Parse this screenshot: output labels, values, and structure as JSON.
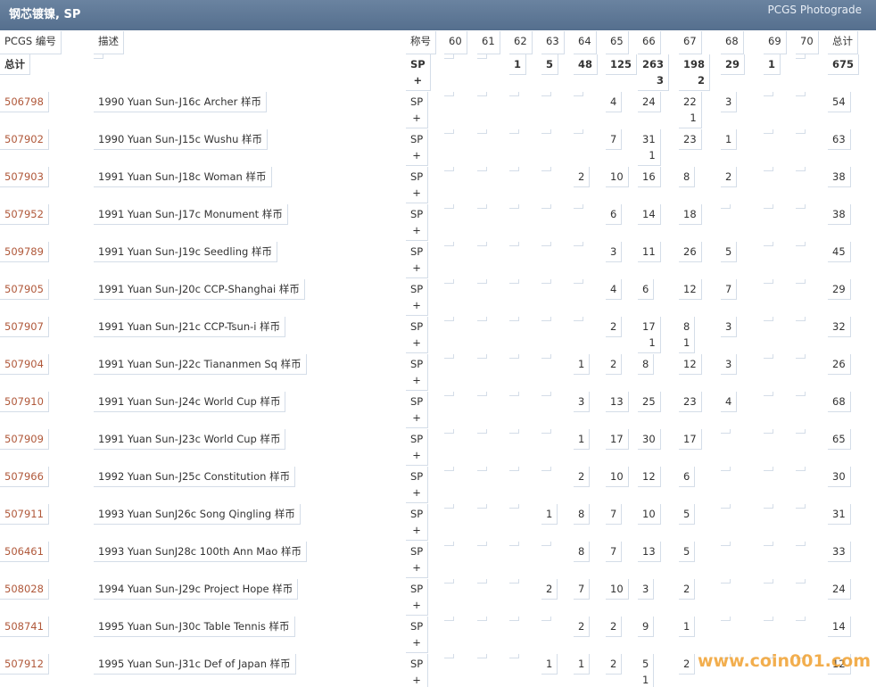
{
  "header": {
    "title": "钢芯镀镍, SP",
    "link": "PCGS Photograde"
  },
  "table": {
    "columns": [
      "PCGS 编号",
      "描述",
      "称号",
      "60",
      "61",
      "62",
      "63",
      "64",
      "65",
      "66",
      "67",
      "68",
      "69",
      "70",
      "总计"
    ],
    "total_row": {
      "label": "总计",
      "designation": [
        "SP",
        "+"
      ],
      "grades": [
        null,
        null,
        [
          1
        ],
        [
          5
        ],
        [
          48
        ],
        [
          125
        ],
        [
          263,
          3
        ],
        [
          198,
          2
        ],
        [
          29
        ],
        [
          1
        ],
        null
      ],
      "total": 675
    },
    "rows": [
      {
        "pcgs": "506798",
        "desc": "1990 Yuan Sun-J16c Archer 样币",
        "designation": [
          "SP",
          "+"
        ],
        "grades": [
          null,
          null,
          null,
          null,
          null,
          [
            4
          ],
          [
            24
          ],
          [
            22,
            1
          ],
          [
            3
          ],
          null,
          null
        ],
        "total": 54
      },
      {
        "pcgs": "507902",
        "desc": "1990 Yuan Sun-J15c Wushu 样币",
        "designation": [
          "SP",
          "+"
        ],
        "grades": [
          null,
          null,
          null,
          null,
          null,
          [
            7
          ],
          [
            31,
            1
          ],
          [
            23
          ],
          [
            1
          ],
          null,
          null
        ],
        "total": 63
      },
      {
        "pcgs": "507903",
        "desc": "1991 Yuan Sun-J18c Woman 样币",
        "designation": [
          "SP",
          "+"
        ],
        "grades": [
          null,
          null,
          null,
          null,
          [
            2
          ],
          [
            10
          ],
          [
            16
          ],
          [
            8
          ],
          [
            2
          ],
          null,
          null
        ],
        "total": 38
      },
      {
        "pcgs": "507952",
        "desc": "1991 Yuan Sun-J17c Monument 样币",
        "designation": [
          "SP",
          "+"
        ],
        "grades": [
          null,
          null,
          null,
          null,
          null,
          [
            6
          ],
          [
            14
          ],
          [
            18
          ],
          null,
          null,
          null
        ],
        "total": 38
      },
      {
        "pcgs": "509789",
        "desc": "1991 Yuan Sun-J19c Seedling 样币",
        "designation": [
          "SP",
          "+"
        ],
        "grades": [
          null,
          null,
          null,
          null,
          null,
          [
            3
          ],
          [
            11
          ],
          [
            26
          ],
          [
            5
          ],
          null,
          null
        ],
        "total": 45
      },
      {
        "pcgs": "507905",
        "desc": "1991 Yuan Sun-J20c CCP-Shanghai 样币",
        "designation": [
          "SP",
          "+"
        ],
        "grades": [
          null,
          null,
          null,
          null,
          null,
          [
            4
          ],
          [
            6
          ],
          [
            12
          ],
          [
            7
          ],
          null,
          null
        ],
        "total": 29
      },
      {
        "pcgs": "507907",
        "desc": "1991 Yuan Sun-J21c CCP-Tsun-i 样币",
        "designation": [
          "SP",
          "+"
        ],
        "grades": [
          null,
          null,
          null,
          null,
          null,
          [
            2
          ],
          [
            17,
            1
          ],
          [
            8,
            1
          ],
          [
            3
          ],
          null,
          null
        ],
        "total": 32
      },
      {
        "pcgs": "507904",
        "desc": "1991 Yuan Sun-J22c Tiananmen Sq 样币",
        "designation": [
          "SP",
          "+"
        ],
        "grades": [
          null,
          null,
          null,
          null,
          [
            1
          ],
          [
            2
          ],
          [
            8
          ],
          [
            12
          ],
          [
            3
          ],
          null,
          null
        ],
        "total": 26
      },
      {
        "pcgs": "507910",
        "desc": "1991 Yuan Sun-J24c World Cup 样币",
        "designation": [
          "SP",
          "+"
        ],
        "grades": [
          null,
          null,
          null,
          null,
          [
            3
          ],
          [
            13
          ],
          [
            25
          ],
          [
            23
          ],
          [
            4
          ],
          null,
          null
        ],
        "total": 68
      },
      {
        "pcgs": "507909",
        "desc": "1991 Yuan Sun-J23c World Cup 样币",
        "designation": [
          "SP",
          "+"
        ],
        "grades": [
          null,
          null,
          null,
          null,
          [
            1
          ],
          [
            17
          ],
          [
            30
          ],
          [
            17
          ],
          null,
          null,
          null
        ],
        "total": 65
      },
      {
        "pcgs": "507966",
        "desc": "1992 Yuan Sun-J25c Constitution 样币",
        "designation": [
          "SP",
          "+"
        ],
        "grades": [
          null,
          null,
          null,
          null,
          [
            2
          ],
          [
            10
          ],
          [
            12
          ],
          [
            6
          ],
          null,
          null,
          null
        ],
        "total": 30
      },
      {
        "pcgs": "507911",
        "desc": "1993 Yuan SunJ26c Song Qingling 样币",
        "designation": [
          "SP",
          "+"
        ],
        "grades": [
          null,
          null,
          null,
          [
            1
          ],
          [
            8
          ],
          [
            7
          ],
          [
            10
          ],
          [
            5
          ],
          null,
          null,
          null
        ],
        "total": 31
      },
      {
        "pcgs": "506461",
        "desc": "1993 Yuan SunJ28c 100th Ann Mao 样币",
        "designation": [
          "SP",
          "+"
        ],
        "grades": [
          null,
          null,
          null,
          null,
          [
            8
          ],
          [
            7
          ],
          [
            13
          ],
          [
            5
          ],
          null,
          null,
          null
        ],
        "total": 33
      },
      {
        "pcgs": "508028",
        "desc": "1994 Yuan Sun-J29c Project Hope 样币",
        "designation": [
          "SP",
          "+"
        ],
        "grades": [
          null,
          null,
          null,
          [
            2
          ],
          [
            7
          ],
          [
            10
          ],
          [
            3
          ],
          [
            2
          ],
          null,
          null,
          null
        ],
        "total": 24
      },
      {
        "pcgs": "508741",
        "desc": "1995 Yuan Sun-J30c Table Tennis 样币",
        "designation": [
          "SP",
          "+"
        ],
        "grades": [
          null,
          null,
          null,
          null,
          [
            2
          ],
          [
            2
          ],
          [
            9
          ],
          [
            1
          ],
          null,
          null,
          null
        ],
        "total": 14
      },
      {
        "pcgs": "507912",
        "desc": "1995 Yuan Sun-J31c Def of Japan 样币",
        "designation": [
          "SP",
          "+"
        ],
        "grades": [
          null,
          null,
          null,
          [
            1
          ],
          [
            1
          ],
          [
            2
          ],
          [
            5,
            1
          ],
          [
            2
          ],
          null,
          null,
          null
        ],
        "total": 12
      }
    ]
  },
  "watermark": "www.coin001.com"
}
